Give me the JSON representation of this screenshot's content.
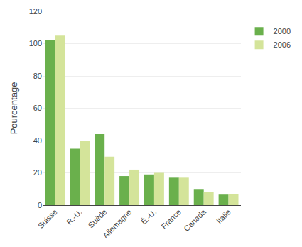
{
  "chart_data": {
    "type": "bar",
    "categories": [
      "Suisse",
      "R.-U.",
      "Suède",
      "Allemagne",
      "É.-U.",
      "France",
      "Canada",
      "Italie"
    ],
    "series": [
      {
        "name": "2000",
        "color": "#6ab04c",
        "values": [
          102,
          35,
          44,
          18,
          19,
          17,
          10,
          6.5
        ]
      },
      {
        "name": "2006",
        "color": "#d4e49a",
        "values": [
          105,
          40,
          30,
          22,
          20,
          17,
          8,
          7
        ]
      }
    ],
    "ylabel": "Pourcentage",
    "ylim": [
      0,
      120
    ],
    "yticks": [
      0,
      20,
      40,
      60,
      80,
      100,
      120
    ],
    "grid": true,
    "legend": "right"
  }
}
